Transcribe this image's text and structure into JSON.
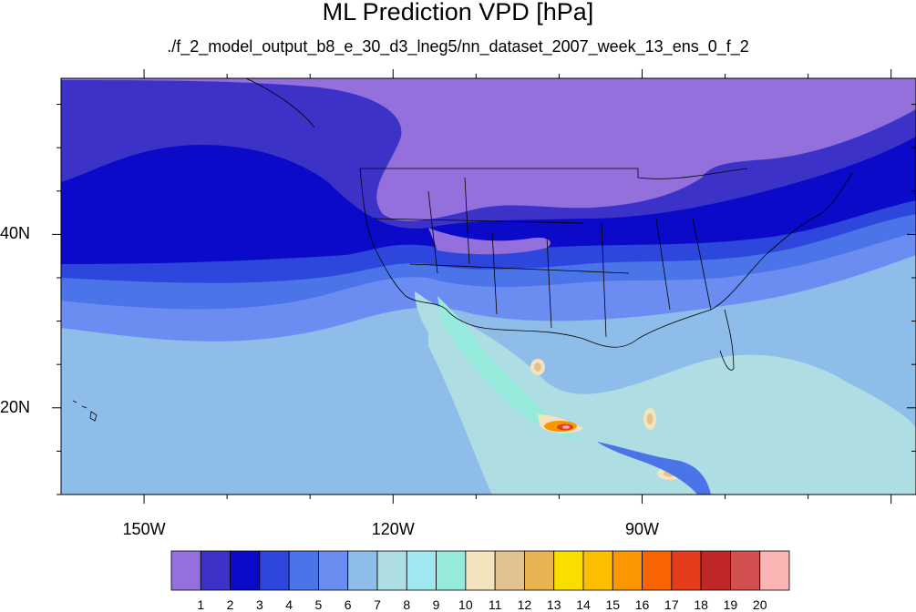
{
  "title": "ML Prediction VPD [hPa]",
  "subtitle": "./f_2_model_output_b8_e_30_d3_lneg5/nn_dataset_2007_week_13_ens_0_f_2",
  "map": {
    "projection": "cylindrical-equidistant",
    "lon_range": [
      -160,
      -57
    ],
    "lat_range": [
      10,
      58
    ],
    "lon_labels": [
      {
        "value": -150,
        "text": "150W"
      },
      {
        "value": -120,
        "text": "120W"
      },
      {
        "value": -90,
        "text": "90W"
      }
    ],
    "lat_labels": [
      {
        "value": 40,
        "text": "40N"
      },
      {
        "value": 20,
        "text": "20N"
      }
    ],
    "coastlines": true,
    "state_boundaries": true
  },
  "colorbar": {
    "units": "hPa",
    "levels": [
      "1",
      "2",
      "3",
      "4",
      "5",
      "6",
      "7",
      "8",
      "9",
      "10",
      "11",
      "12",
      "13",
      "14",
      "15",
      "16",
      "17",
      "18",
      "19",
      "20"
    ],
    "colors": [
      "#9370db",
      "#3c32c8",
      "#0a0ac8",
      "#2d46dc",
      "#4a74e8",
      "#6b8cf0",
      "#8fbde9",
      "#aedee4",
      "#a0e8f0",
      "#96eadc",
      "#f3e4be",
      "#e2c291",
      "#e6b450",
      "#fade00",
      "#fbbf00",
      "#fa9600",
      "#f76400",
      "#e63c1e",
      "#c02828",
      "#d25050",
      "#fab4b4"
    ]
  },
  "icons": {
    "map": "map-icon"
  }
}
